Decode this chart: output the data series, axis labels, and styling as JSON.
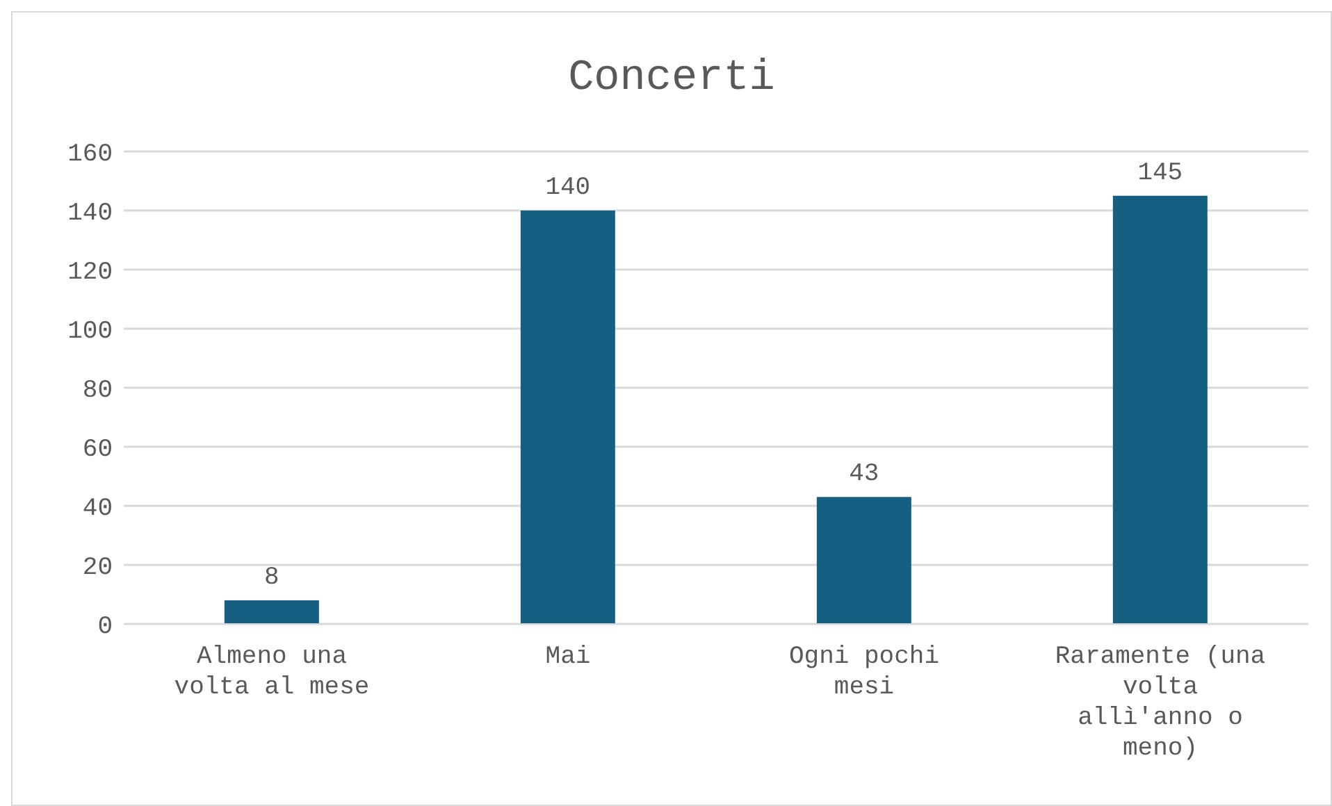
{
  "chart_data": {
    "type": "bar",
    "title": "Concerti",
    "categories": [
      "Almeno una volta al mese",
      "Mai",
      "Ogni pochi mesi",
      "Raramente (una volta allì'anno o meno)"
    ],
    "values": [
      8,
      140,
      43,
      145
    ],
    "color": "#156082",
    "ylim": [
      0,
      160
    ],
    "yticks": [
      0,
      20,
      40,
      60,
      80,
      100,
      120,
      140,
      160
    ],
    "grid": "y",
    "data_labels": true
  }
}
